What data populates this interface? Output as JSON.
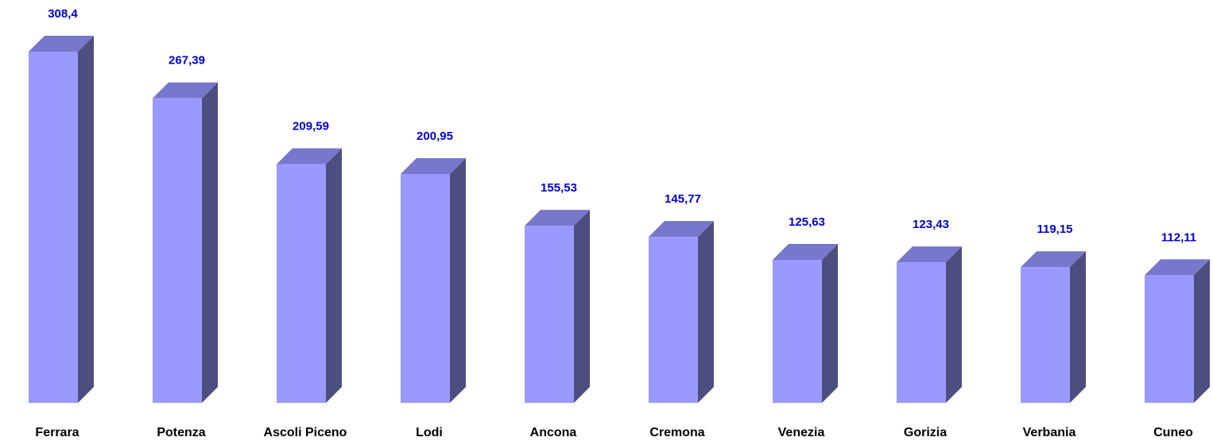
{
  "chart_data": {
    "type": "bar3d",
    "categories": [
      "Ferrara",
      "Potenza",
      "Ascoli Piceno",
      "Lodi",
      "Ancona",
      "Cremona",
      "Venezia",
      "Gorizia",
      "Verbania",
      "Cuneo"
    ],
    "values": [
      308.4,
      267.39,
      209.59,
      200.95,
      155.53,
      145.77,
      125.63,
      123.43,
      119.15,
      112.11
    ],
    "value_labels": [
      "308,4",
      "267,39",
      "209,59",
      "200,95",
      "155,53",
      "145,77",
      "125,63",
      "123,43",
      "119,15",
      "112,11"
    ],
    "colors": {
      "front": "#9999ff",
      "top": "#7777cc",
      "side": "#4d4d80"
    },
    "label_color": "#0000cc"
  }
}
